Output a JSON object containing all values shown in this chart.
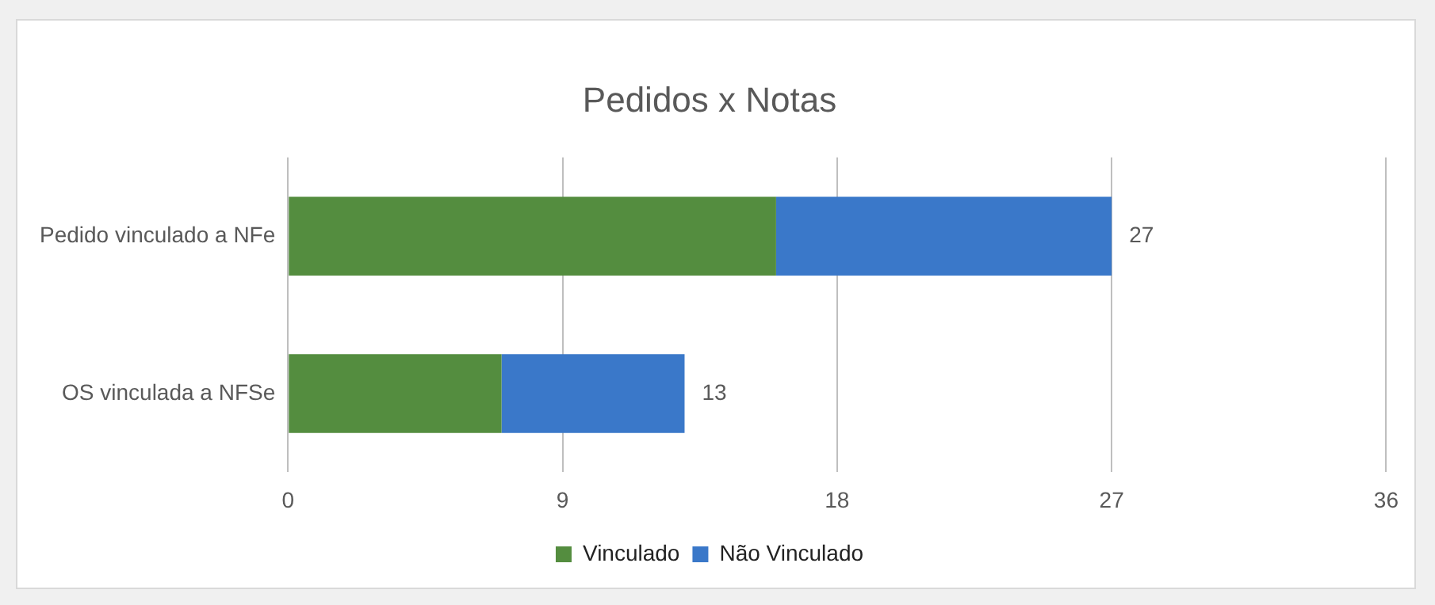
{
  "chart_data": {
    "type": "bar",
    "title": "Pedidos x Notas",
    "orientation": "horizontal",
    "stacked": true,
    "categories": [
      "Pedido vinculado a NFe",
      "OS vinculada a NFSe"
    ],
    "series": [
      {
        "name": "Vinculado",
        "color": "#548d3f",
        "values": [
          16,
          7
        ]
      },
      {
        "name": "Não Vinculado",
        "color": "#3a78c9",
        "values": [
          11,
          6
        ]
      }
    ],
    "totals": [
      "27",
      "13"
    ],
    "xlim": [
      0,
      36
    ],
    "xticks": [
      0,
      9,
      18,
      27,
      36
    ],
    "grid": "x",
    "legend": "bottom"
  }
}
